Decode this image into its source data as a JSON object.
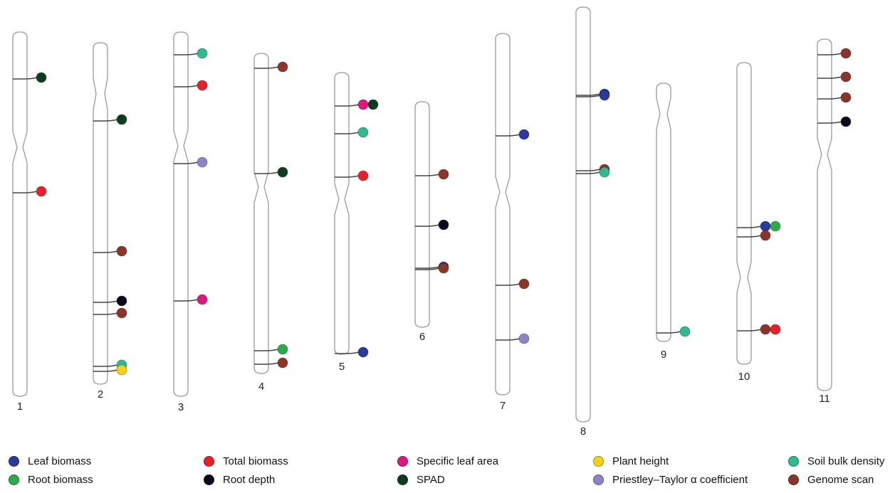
{
  "traits": [
    {
      "key": "leaf_biomass",
      "label": "Leaf biomass",
      "color": "#2b3a9a"
    },
    {
      "key": "total_biomass",
      "label": "Total biomass",
      "color": "#e8202a"
    },
    {
      "key": "specific_leaf_area",
      "label": "Specific leaf area",
      "color": "#e0167f"
    },
    {
      "key": "plant_height",
      "label": "Plant height",
      "color": "#f7d117"
    },
    {
      "key": "soil_bulk_density",
      "label": "Soil bulk density",
      "color": "#2dbb8f"
    },
    {
      "key": "root_biomass",
      "label": "Root biomass",
      "color": "#2cab4a"
    },
    {
      "key": "root_depth",
      "label": "Root depth",
      "color": "#0a0a1e"
    },
    {
      "key": "spad",
      "label": "SPAD",
      "color": "#0d3d1d"
    },
    {
      "key": "priestley_taylor",
      "label": "Priestley–Taylor α coefficient",
      "color": "#8a84c4"
    },
    {
      "key": "genome_scan",
      "label": "Genome scan",
      "color": "#8b3528"
    }
  ],
  "chromosomes": [
    {
      "label": "1",
      "markers": [
        {
          "traits": [
            "spad"
          ]
        },
        {
          "traits": [
            "total_biomass"
          ]
        }
      ]
    },
    {
      "label": "2",
      "markers": [
        {
          "traits": [
            "spad"
          ]
        },
        {
          "traits": [
            "genome_scan"
          ]
        },
        {
          "traits": [
            "root_depth"
          ]
        },
        {
          "traits": [
            "genome_scan"
          ]
        },
        {
          "traits": [
            "soil_bulk_density"
          ]
        },
        {
          "traits": [
            "plant_height"
          ]
        }
      ]
    },
    {
      "label": "3",
      "markers": [
        {
          "traits": [
            "soil_bulk_density"
          ]
        },
        {
          "traits": [
            "total_biomass"
          ]
        },
        {
          "traits": [
            "priestley_taylor"
          ]
        },
        {
          "traits": [
            "specific_leaf_area"
          ]
        }
      ]
    },
    {
      "label": "4",
      "markers": [
        {
          "traits": [
            "genome_scan"
          ]
        },
        {
          "traits": [
            "spad"
          ]
        },
        {
          "traits": [
            "root_biomass"
          ]
        },
        {
          "traits": [
            "genome_scan"
          ]
        }
      ]
    },
    {
      "label": "5",
      "markers": [
        {
          "traits": [
            "specific_leaf_area",
            "spad"
          ]
        },
        {
          "traits": [
            "soil_bulk_density"
          ]
        },
        {
          "traits": [
            "total_biomass"
          ]
        },
        {
          "traits": [
            "leaf_biomass"
          ]
        }
      ]
    },
    {
      "label": "6",
      "markers": [
        {
          "traits": [
            "genome_scan"
          ]
        },
        {
          "traits": [
            "root_depth"
          ]
        },
        {
          "traits": [
            "leaf_biomass"
          ]
        },
        {
          "traits": [
            "genome_scan"
          ]
        }
      ]
    },
    {
      "label": "7",
      "markers": [
        {
          "traits": [
            "leaf_biomass"
          ]
        },
        {
          "traits": [
            "genome_scan"
          ]
        },
        {
          "traits": [
            "priestley_taylor"
          ]
        }
      ]
    },
    {
      "label": "8",
      "markers": [
        {
          "traits": [
            "leaf_biomass"
          ]
        },
        {
          "traits": [
            "leaf_biomass"
          ]
        },
        {
          "traits": [
            "genome_scan"
          ]
        },
        {
          "traits": [
            "soil_bulk_density"
          ]
        }
      ]
    },
    {
      "label": "9",
      "markers": [
        {
          "traits": [
            "soil_bulk_density"
          ]
        }
      ]
    },
    {
      "label": "10",
      "markers": [
        {
          "traits": [
            "leaf_biomass",
            "root_biomass"
          ]
        },
        {
          "traits": [
            "genome_scan"
          ]
        },
        {
          "traits": [
            "genome_scan",
            "total_biomass"
          ]
        }
      ]
    },
    {
      "label": "11",
      "markers": [
        {
          "traits": [
            "genome_scan"
          ]
        },
        {
          "traits": [
            "genome_scan"
          ]
        },
        {
          "traits": [
            "genome_scan"
          ]
        },
        {
          "traits": [
            "root_depth"
          ]
        }
      ]
    }
  ]
}
